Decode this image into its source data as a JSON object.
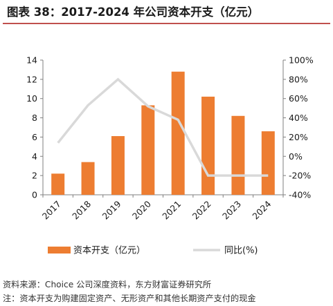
{
  "header": {
    "title": "图表 38：2017-2024 年公司资本开支（亿元）"
  },
  "footer": {
    "source": "资料来源：Choice 公司深度资料，东方财富证券研究所",
    "note": "注：资本开支为购建固定资产、无形资产和其他长期资产支付的现金"
  },
  "colors": {
    "bar": "#ed7d31",
    "line": "#d9d9d9",
    "title_rule": "#c0504d"
  },
  "chart_data": {
    "type": "bar",
    "categories": [
      "2017",
      "2018",
      "2019",
      "2020",
      "2021",
      "2022",
      "2023",
      "2024"
    ],
    "series": [
      {
        "name": "资本开支（亿元）",
        "type": "bar",
        "axis": "left",
        "values": [
          2.2,
          3.4,
          6.1,
          9.3,
          12.8,
          10.2,
          8.2,
          6.6
        ]
      },
      {
        "name": "同比(%)",
        "type": "line",
        "axis": "right",
        "values": [
          14,
          53,
          80,
          52,
          38,
          -20,
          -20,
          -20
        ]
      }
    ],
    "y_left": {
      "min": 0,
      "max": 14,
      "ticks": [
        0,
        2,
        4,
        6,
        8,
        10,
        12,
        14
      ]
    },
    "y_right": {
      "min": -40,
      "max": 100,
      "ticks": [
        "-40%",
        "-20%",
        "0%",
        "20%",
        "40%",
        "60%",
        "80%",
        "100%"
      ]
    },
    "grid": false,
    "legend_position": "bottom"
  }
}
